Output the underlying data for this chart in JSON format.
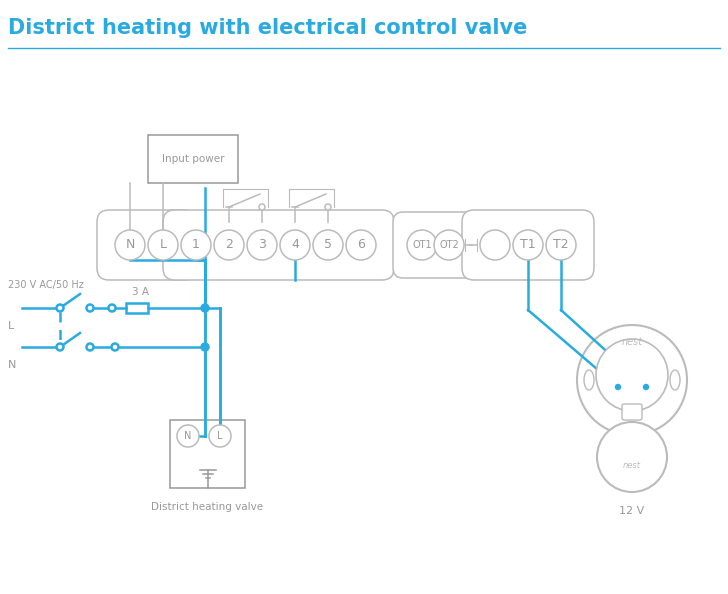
{
  "title": "District heating with electrical control valve",
  "title_color": "#29ABE2",
  "bg_color": "#FFFFFF",
  "line_color": "#29ABE2",
  "gray_color": "#999999",
  "light_gray": "#BBBBBB",
  "input_power_label": "Input power",
  "district_heating_label": "District heating valve",
  "voltage_label": "230 V AC/50 Hz",
  "fuse_label": "3 A",
  "low_voltage_label": "12 V",
  "L_label": "L",
  "N_label": "N",
  "nest_label": "nest"
}
